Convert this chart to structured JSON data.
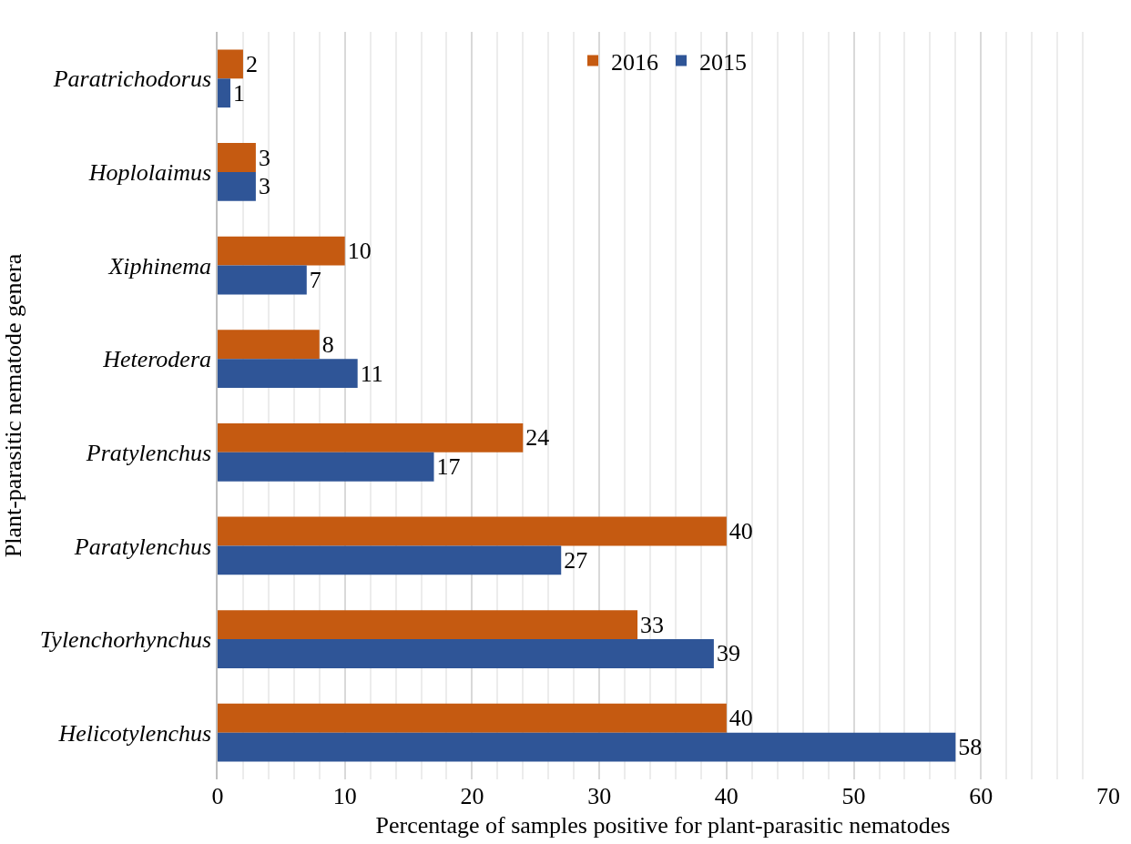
{
  "chart_data": {
    "type": "bar",
    "orientation": "horizontal",
    "xlabel": "Percentage of samples positive for plant-parasitic nematodes",
    "ylabel": "Plant-parasitic nematode genera",
    "categories": [
      "Paratrichodorus",
      "Hoplolaimus",
      "Xiphinema",
      "Heterodera",
      "Pratylenchus",
      "Paratylenchus",
      "Tylenchorhynchus",
      "Helicotylenchus"
    ],
    "series": [
      {
        "name": "2016",
        "color": "#c55a11",
        "values": [
          2,
          3,
          10,
          8,
          24,
          40,
          33,
          40
        ]
      },
      {
        "name": "2015",
        "color": "#2f5597",
        "values": [
          1,
          3,
          7,
          11,
          17,
          27,
          39,
          58
        ]
      }
    ],
    "xlim": [
      0,
      70
    ],
    "xticks": [
      0,
      10,
      20,
      30,
      40,
      50,
      60,
      70
    ],
    "grid": "x",
    "legend": "top",
    "data_labels": true
  }
}
